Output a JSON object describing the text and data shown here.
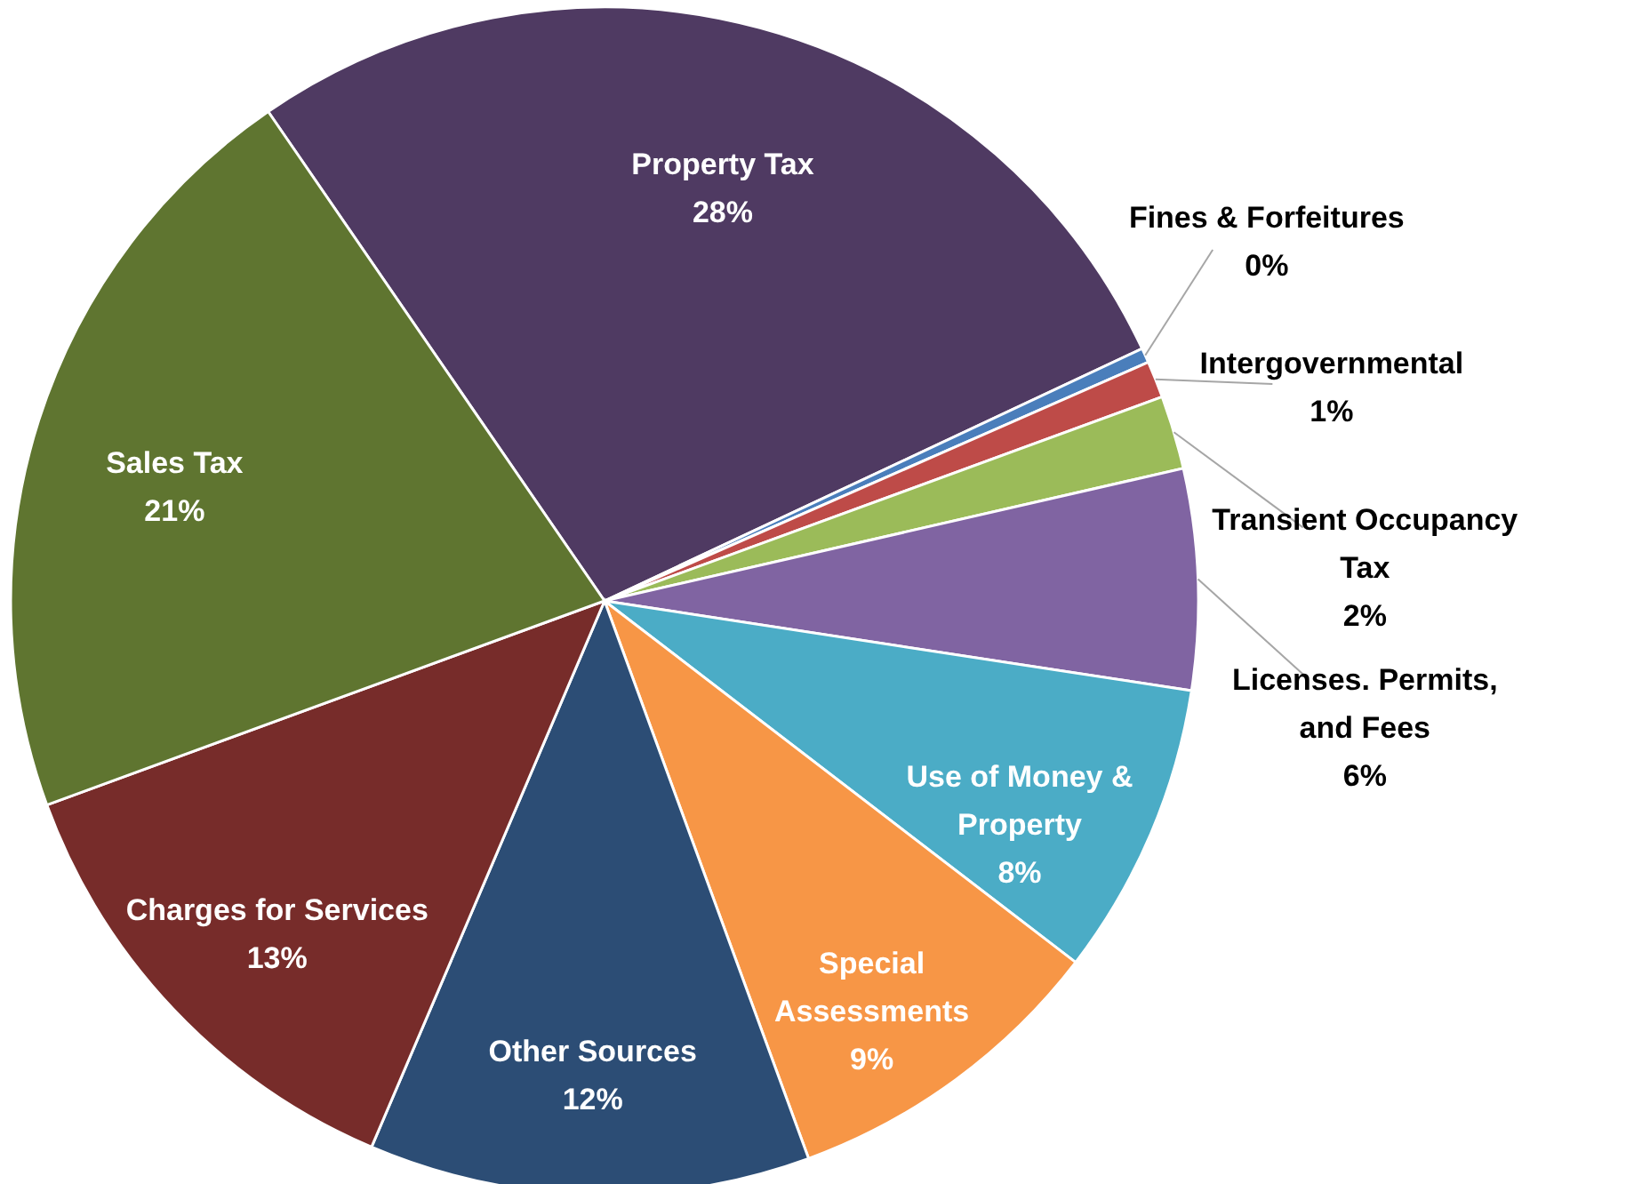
{
  "chart_data": {
    "type": "pie",
    "categories": [
      "Property Tax",
      "Fines & Forfeitures",
      "Intergovernmental",
      "Transient Occupancy\nTax",
      "Licenses. Permits,\nand Fees",
      "Use of Money &\nProperty",
      "Special\nAssessments",
      "Other Sources",
      "Charges for Services",
      "Sales Tax"
    ],
    "values": [
      27.6,
      0.4,
      1,
      2,
      6,
      8,
      9,
      12,
      13,
      21
    ],
    "value_labels": [
      "28%",
      "0%",
      "1%",
      "2%",
      "6%",
      "8%",
      "9%",
      "12%",
      "13%",
      "21%"
    ],
    "colors": [
      "#4f3a62",
      "#4a7ebb",
      "#be4b48",
      "#9bbb59",
      "#8064a2",
      "#4bacc6",
      "#f79646",
      "#2c4d75",
      "#772c2a",
      "#5f7530"
    ]
  }
}
